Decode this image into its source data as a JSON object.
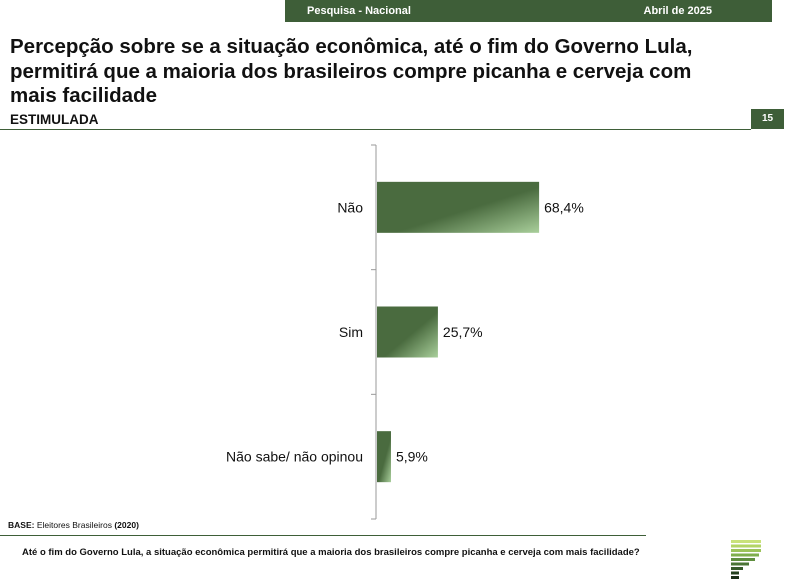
{
  "header": {
    "survey": "Pesquisa - Nacional",
    "date": "Abril de 2025"
  },
  "title": "Percepção sobre se a situação econômica, até o fim do Governo Lula, permitirá que a maioria dos brasileiros compre picanha e cerveja com mais facilidade",
  "subtitle": "ESTIMULADA",
  "page_number": "15",
  "base": {
    "label": "BASE:",
    "text": "Eleitores Brasileiros",
    "count": "(2020)"
  },
  "question": "Até o fim do Governo Lula, a situação econômica permitirá que a maioria dos brasileiros compre picanha e cerveja com mais facilidade?",
  "colors": {
    "brand_green": "#3e5e38",
    "bar_dark": "#4a6b3f",
    "bar_light": "#a9cf9b"
  },
  "chart_data": {
    "type": "bar",
    "orientation": "horizontal",
    "categories": [
      "Não",
      "Sim",
      "Não sabe/ não opinou"
    ],
    "values": [
      68.4,
      25.7,
      5.9
    ],
    "value_labels": [
      "68,4%",
      "25,7%",
      "5,9%"
    ],
    "xlim": [
      0,
      100
    ],
    "grid": false,
    "legend": "none"
  }
}
